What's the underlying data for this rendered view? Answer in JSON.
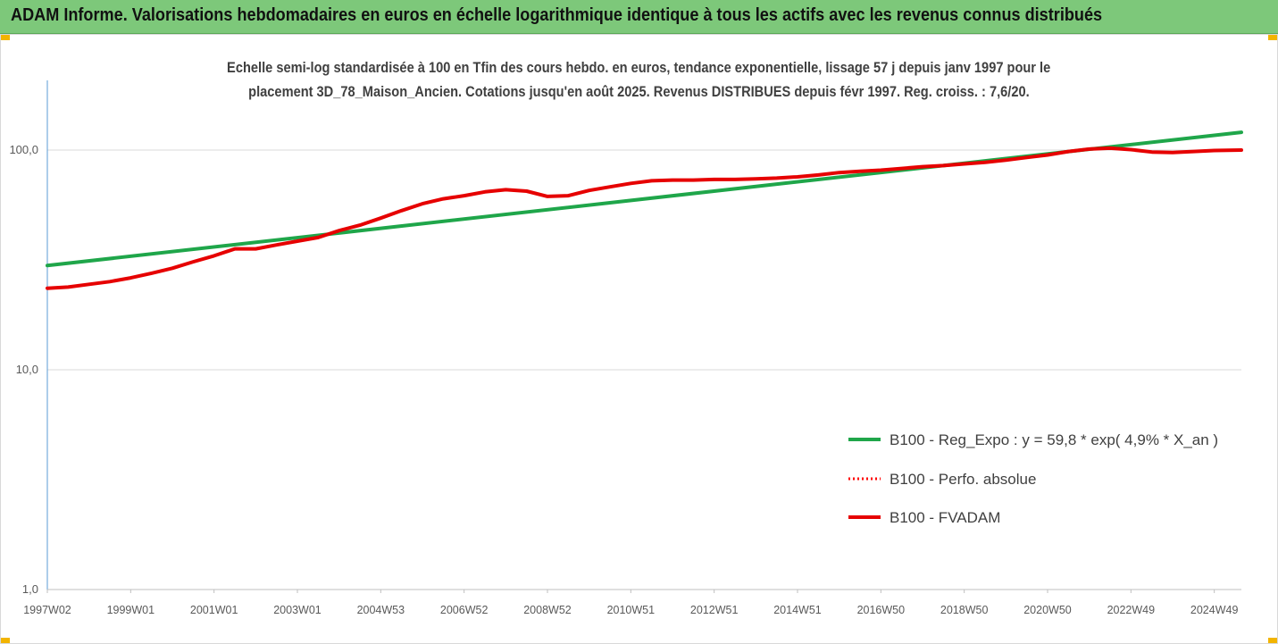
{
  "header": {
    "title": "ADAM Informe. Valorisations hebdomadaires en euros en échelle logarithmique identique à tous les actifs avec les revenus connus distribués",
    "background": "#7dc87a"
  },
  "chart_data": {
    "type": "line",
    "title_line1": "Echelle semi-log standardisée à 100 en Tfin des cours hebdo. en euros, tendance exponentielle, lissage 57 j depuis janv 1997 pour le",
    "title_line2": "placement 3D_78_Maison_Ancien. Cotations jusqu'en août 2025. Revenus DISTRIBUES depuis févr 1997. Reg. croiss. : 7,6/20.",
    "y_scale": "log",
    "ylim": [
      1,
      200
    ],
    "y_ticks": [
      {
        "value": 100,
        "label": "100,0"
      },
      {
        "value": 10,
        "label": "10,0"
      },
      {
        "value": 1,
        "label": "1,0"
      }
    ],
    "x_tick_labels": [
      "1997W02",
      "1999W01",
      "2001W01",
      "2003W01",
      "2004W53",
      "2006W52",
      "2008W52",
      "2010W51",
      "2012W51",
      "2014W51",
      "2016W50",
      "2018W50",
      "2020W50",
      "2022W49",
      "2024W49"
    ],
    "x_tick_years": [
      1997.0,
      1999.0,
      2001.0,
      2003.0,
      2005.0,
      2007.0,
      2009.0,
      2011.0,
      2013.0,
      2015.0,
      2017.0,
      2019.0,
      2021.0,
      2023.0,
      2025.0
    ],
    "xlim": [
      1997.0,
      2025.65
    ],
    "grid": "horizontal",
    "legend_position": "right-middle",
    "series": [
      {
        "name": "B100 - Reg_Expo : y = 59,8 * exp( 4,9% *  X_an )",
        "color": "#1fa64a",
        "style": "solid",
        "x": [
          1997.0,
          2025.65
        ],
        "y": [
          29.8,
          120.5
        ]
      },
      {
        "name": "B100 - Perfo. absolue",
        "color": "#ff0000",
        "style": "dotted",
        "x": [],
        "y": []
      },
      {
        "name": "B100 - FVADAM",
        "color": "#e60000",
        "style": "solid",
        "x": [
          1997.0,
          1997.5,
          1998.0,
          1998.5,
          1999.0,
          1999.5,
          2000.0,
          2000.5,
          2001.0,
          2001.5,
          2002.0,
          2002.5,
          2003.0,
          2003.5,
          2004.0,
          2004.5,
          2005.0,
          2005.5,
          2006.0,
          2006.5,
          2007.0,
          2007.5,
          2008.0,
          2008.5,
          2009.0,
          2009.5,
          2010.0,
          2010.5,
          2011.0,
          2011.5,
          2012.0,
          2012.5,
          2013.0,
          2013.5,
          2014.0,
          2014.5,
          2015.0,
          2015.5,
          2016.0,
          2016.5,
          2017.0,
          2017.5,
          2018.0,
          2018.5,
          2019.0,
          2019.5,
          2020.0,
          2020.5,
          2021.0,
          2021.5,
          2022.0,
          2022.5,
          2023.0,
          2023.5,
          2024.0,
          2024.5,
          2025.0,
          2025.65
        ],
        "y": [
          23.5,
          23.8,
          24.5,
          25.2,
          26.2,
          27.5,
          29.0,
          31.0,
          33.0,
          35.5,
          35.5,
          37.0,
          38.5,
          40.0,
          43.0,
          45.5,
          49.0,
          53.0,
          57.0,
          60.0,
          62.0,
          64.5,
          66.0,
          65.0,
          61.5,
          62.0,
          65.5,
          68.0,
          70.5,
          72.5,
          73.0,
          73.0,
          73.5,
          73.5,
          74.0,
          74.5,
          75.5,
          77.0,
          79.0,
          80.0,
          81.0,
          82.5,
          84.0,
          85.0,
          86.5,
          88.0,
          90.0,
          92.5,
          95.0,
          98.5,
          101.0,
          102.0,
          100.5,
          98.0,
          97.5,
          98.5,
          99.5,
          100.0
        ]
      }
    ]
  }
}
